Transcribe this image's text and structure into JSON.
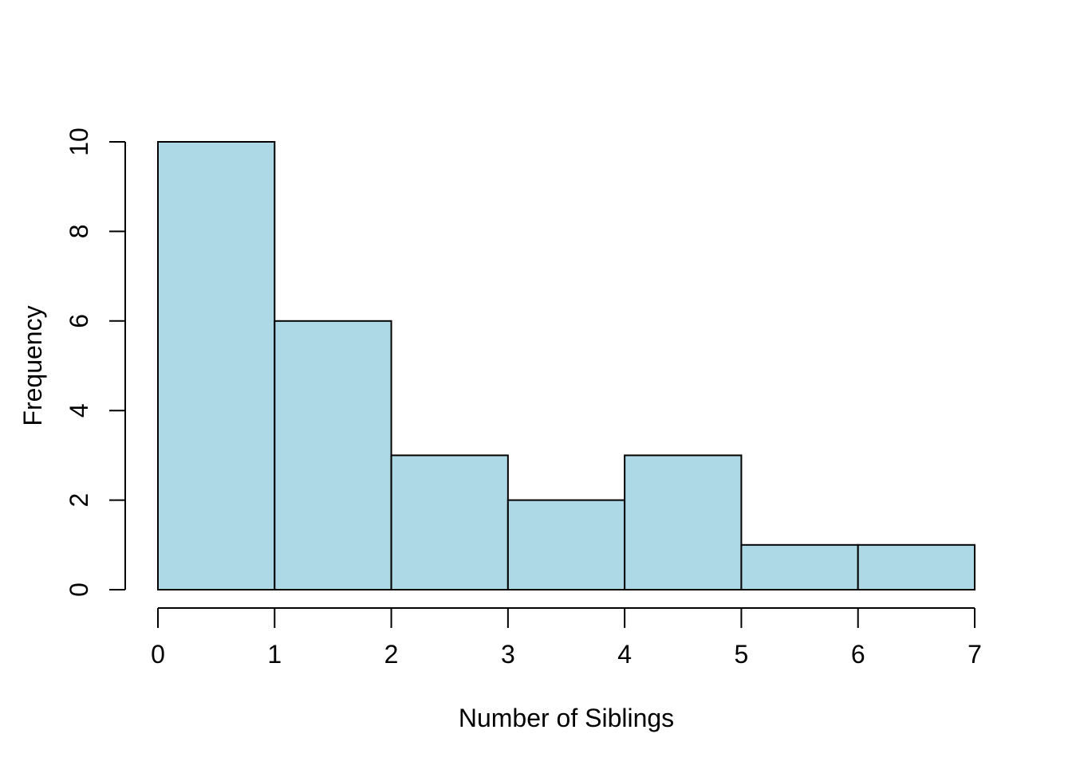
{
  "figure": {
    "background": "#ffffff"
  },
  "chart_data": {
    "type": "bar",
    "subtype": "histogram",
    "xlabel": "Number of Siblings",
    "ylabel": "Frequency",
    "bin_edges": [
      0,
      1,
      2,
      3,
      4,
      5,
      6,
      7
    ],
    "counts": [
      10,
      6,
      3,
      2,
      3,
      1,
      1
    ],
    "x_tick_labels": [
      "0",
      "1",
      "2",
      "3",
      "4",
      "5",
      "6",
      "7"
    ],
    "x_tick_values": [
      0,
      1,
      2,
      3,
      4,
      5,
      6,
      7
    ],
    "y_tick_labels": [
      "0",
      "2",
      "4",
      "6",
      "8",
      "10"
    ],
    "y_tick_values": [
      0,
      2,
      4,
      6,
      8,
      10
    ],
    "xlim": [
      0,
      7
    ],
    "ylim": [
      0,
      10
    ],
    "grid": false,
    "legend_position": "none",
    "bar_fill_color": "#ADD8E6",
    "bar_border_color": "#000000",
    "axis_color": "#000000",
    "text_color": "#000000"
  }
}
